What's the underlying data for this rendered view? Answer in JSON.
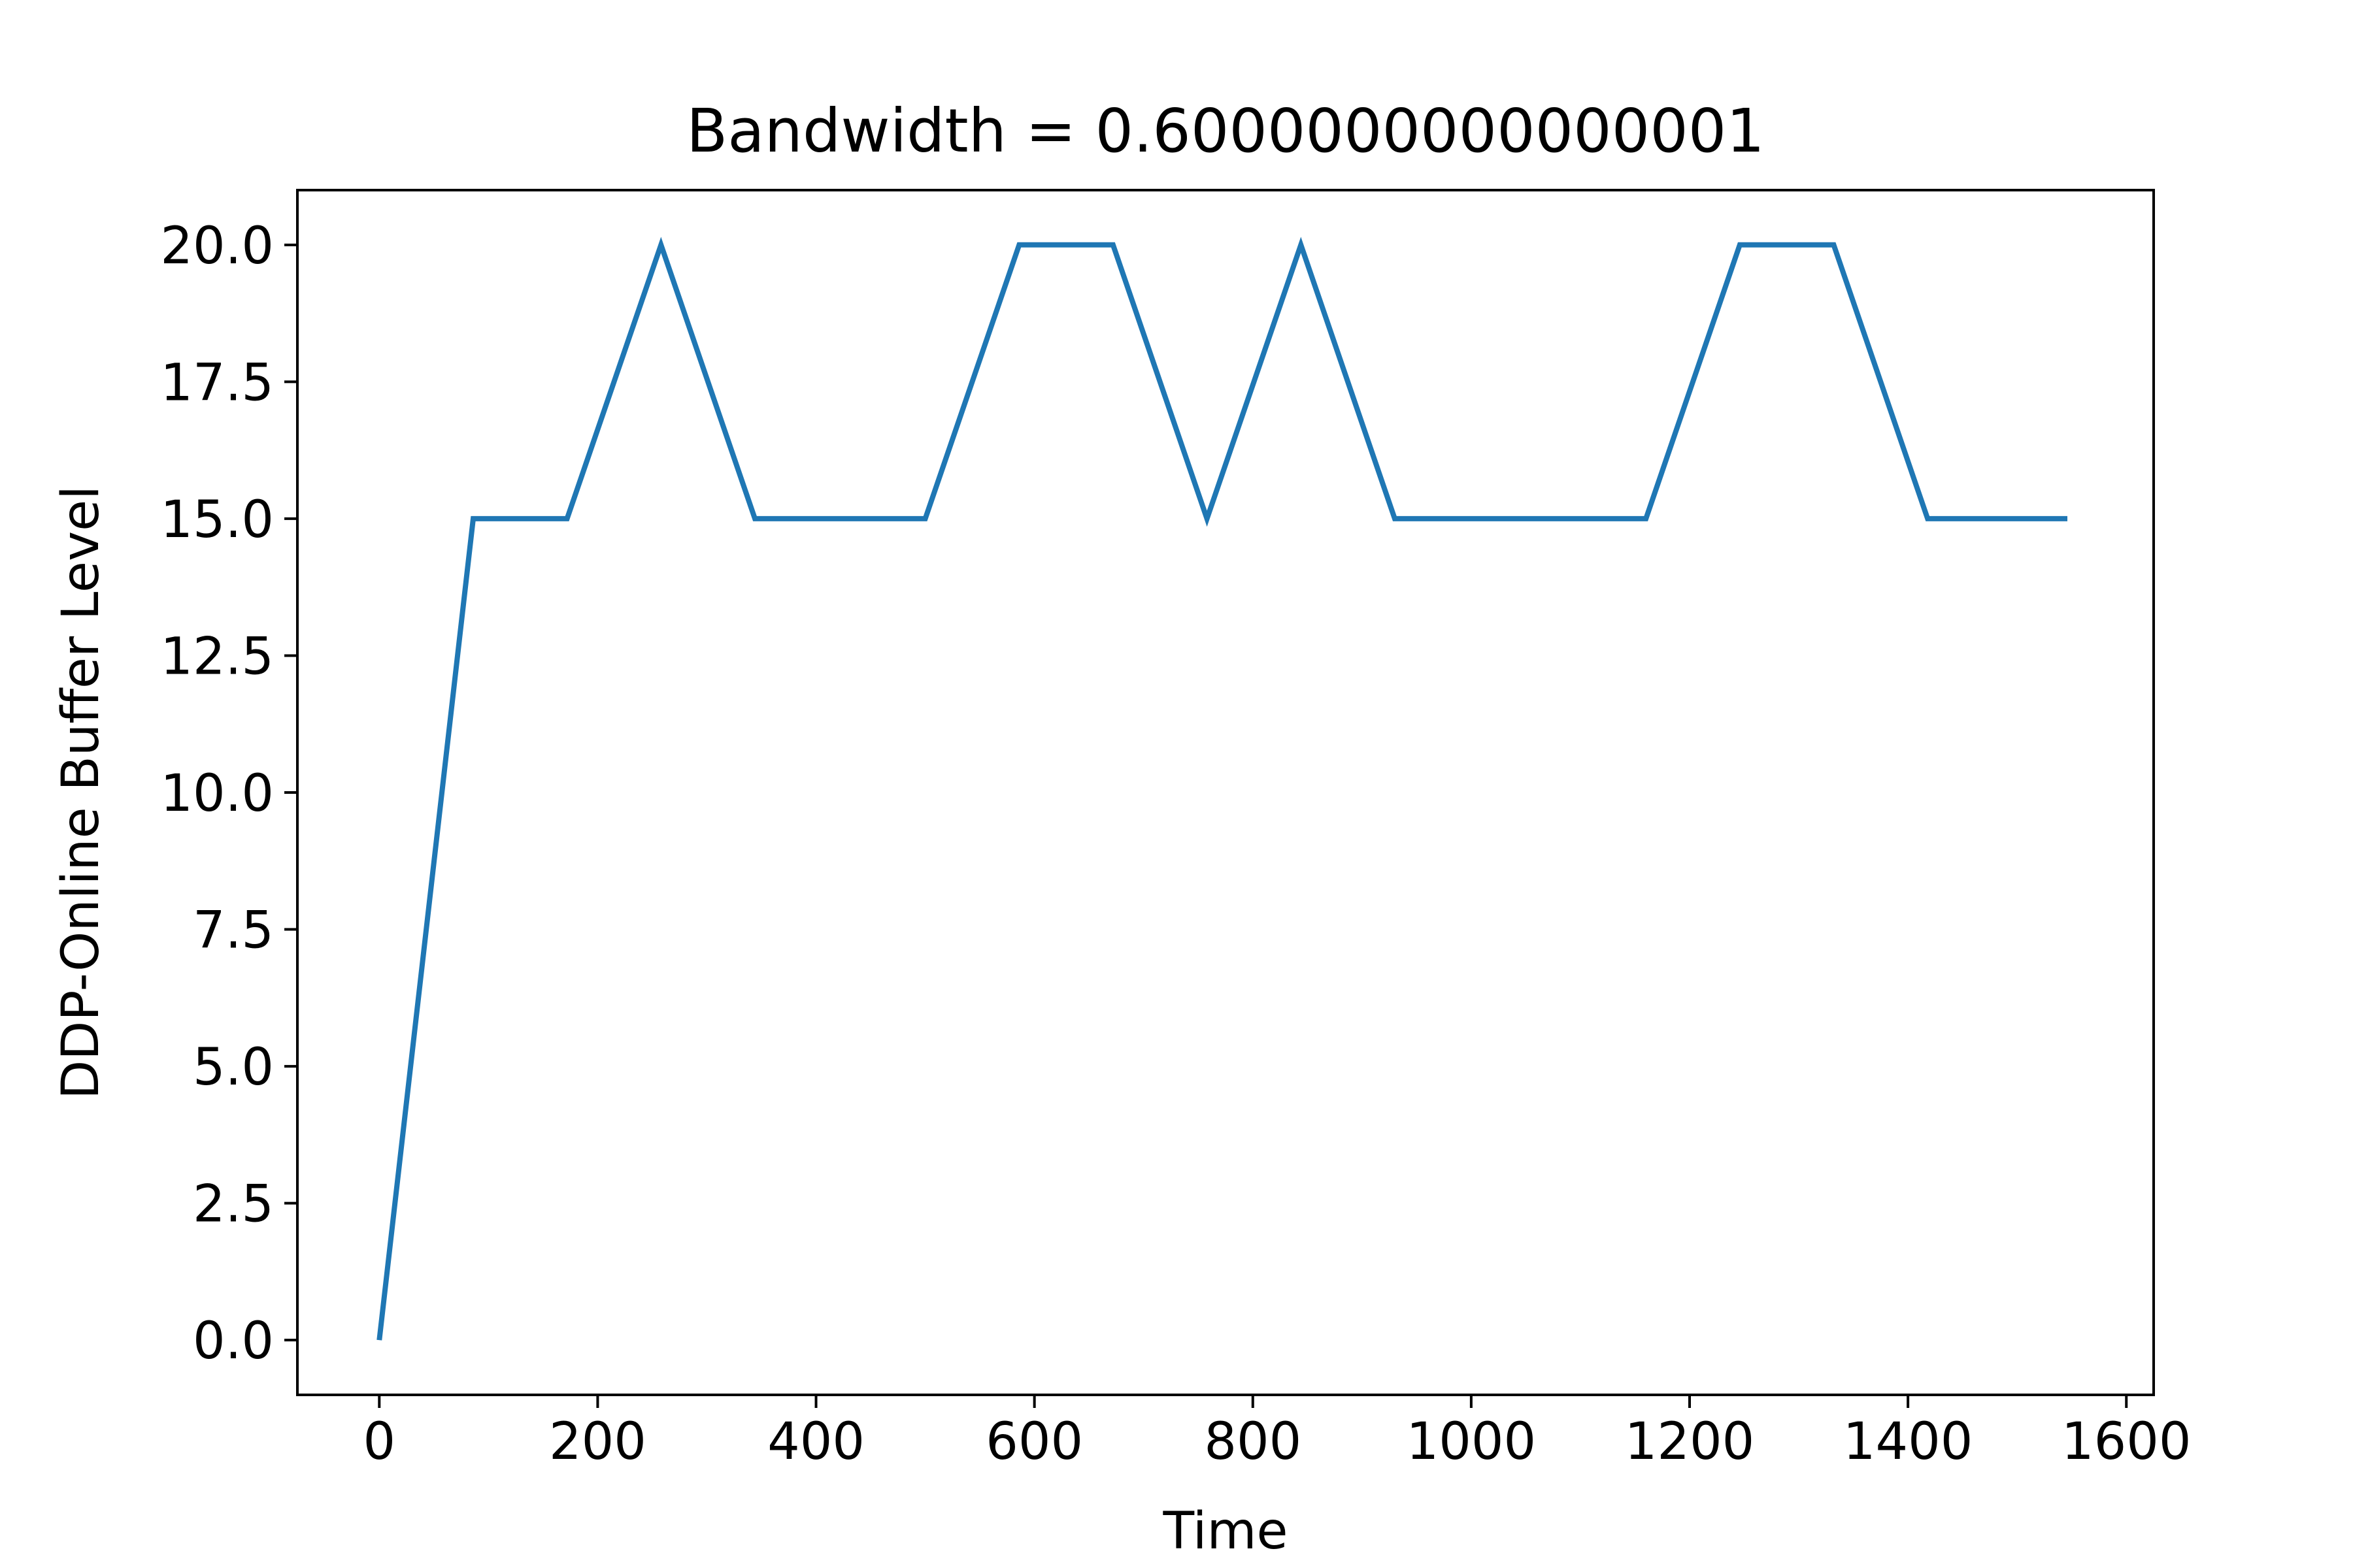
{
  "chart_data": {
    "type": "line",
    "title": "Bandwidth = 0.6000000000000001",
    "xlabel": "Time",
    "ylabel": "DDP-Online Buffer Level",
    "xlim": [
      -75,
      1625
    ],
    "ylim": [
      -1.0,
      21.0
    ],
    "xticks": [
      0,
      200,
      400,
      600,
      800,
      1000,
      1200,
      1400,
      1600
    ],
    "xtick_labels": [
      "0",
      "200",
      "400",
      "600",
      "800",
      "1000",
      "1200",
      "1400",
      "1600"
    ],
    "yticks": [
      0.0,
      2.5,
      5.0,
      7.5,
      10.0,
      12.5,
      15.0,
      17.5,
      20.0
    ],
    "ytick_labels": [
      "0.0",
      "2.5",
      "5.0",
      "7.5",
      "10.0",
      "12.5",
      "15.0",
      "17.5",
      "20.0"
    ],
    "grid": false,
    "legend": null,
    "series": [
      {
        "color": "#1f77b4",
        "x": [
          0,
          86,
          172,
          258,
          344,
          500,
          586,
          672,
          758,
          844,
          930,
          1160,
          1246,
          1332,
          1418,
          1546
        ],
        "y": [
          0,
          15,
          15,
          20,
          15,
          15,
          20,
          20,
          15,
          20,
          15,
          15,
          20,
          20,
          15,
          15
        ]
      }
    ]
  }
}
